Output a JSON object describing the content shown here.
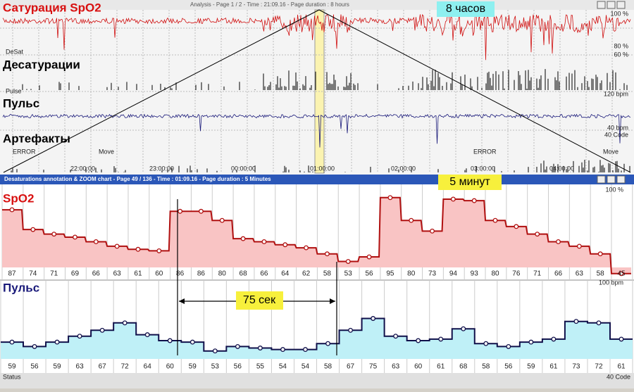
{
  "overview": {
    "title": "Analysis - Page 1 / 2 - Time : 21:09.16 - Page duration : 8 hours",
    "labels": {
      "spo2": "Сатурация SpO2",
      "duration": "8 часов",
      "desat": "Десатурации",
      "pulse": "Пульс",
      "artifacts": "Артефакты"
    },
    "scale_labels": [
      "100 %",
      "80 %",
      "60 %",
      "120 bpm",
      "40 bpm",
      "40 Code"
    ],
    "channel_labels": [
      "DeSat",
      "Pulse"
    ],
    "events": [
      "ERROR",
      "Move",
      "ERROR",
      "Move"
    ],
    "times": [
      "22:00:00",
      "23:00:00",
      "00:00:00",
      "01:00:00",
      "02:00:00",
      "03:00:00",
      "04:00:00"
    ]
  },
  "zoom": {
    "title": "Desaturations annotation & ZOOM chart - Page 49 / 136 - Time : 01:09.16 - Page duration : 5 Minutes",
    "spo2_label": "SpO2",
    "duration": "5 минут",
    "pulse_label": "Пульс",
    "interval": "75 сек",
    "spo2_scale": "100 %",
    "pulse_scale": "100 bpm",
    "code_label": "40 Code",
    "status": "Status",
    "spo2_values": [
      87,
      74,
      71,
      69,
      66,
      63,
      61,
      60,
      86,
      86,
      80,
      68,
      66,
      64,
      62,
      58,
      53,
      56,
      95,
      80,
      73,
      94,
      93,
      80,
      76,
      71,
      66,
      63,
      58,
      45
    ],
    "pulse_values": [
      59,
      56,
      59,
      63,
      67,
      72,
      64,
      60,
      59,
      53,
      56,
      55,
      54,
      54,
      58,
      67,
      75,
      63,
      60,
      61,
      68,
      58,
      56,
      59,
      61,
      73,
      72,
      61
    ]
  }
}
